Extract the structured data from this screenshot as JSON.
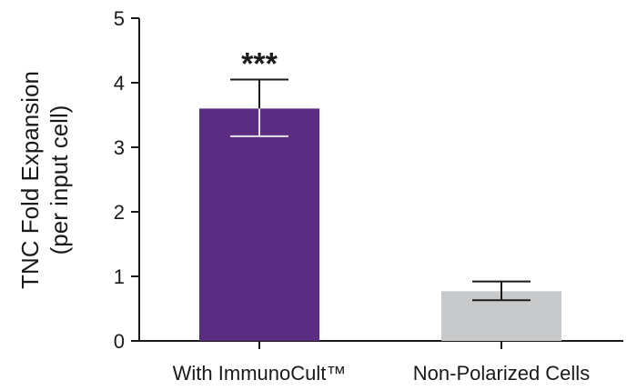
{
  "chart_data": {
    "type": "bar",
    "title": "",
    "xlabel": "",
    "ylabel_lines": [
      "TNC Fold Expansion",
      "(per input cell)"
    ],
    "categories": [
      "With ImmunoCult™",
      "Non-Polarized Cells"
    ],
    "values": [
      3.6,
      0.77
    ],
    "error_upper": [
      4.05,
      0.92
    ],
    "error_lower": [
      3.17,
      0.63
    ],
    "annotations": [
      "***",
      ""
    ],
    "colors": [
      "#5b2d82",
      "#c8c9cb"
    ],
    "ylim": [
      0,
      5
    ],
    "yticks": [
      "0",
      "1",
      "2",
      "3",
      "4",
      "5"
    ],
    "grid": false,
    "legend": "none"
  }
}
